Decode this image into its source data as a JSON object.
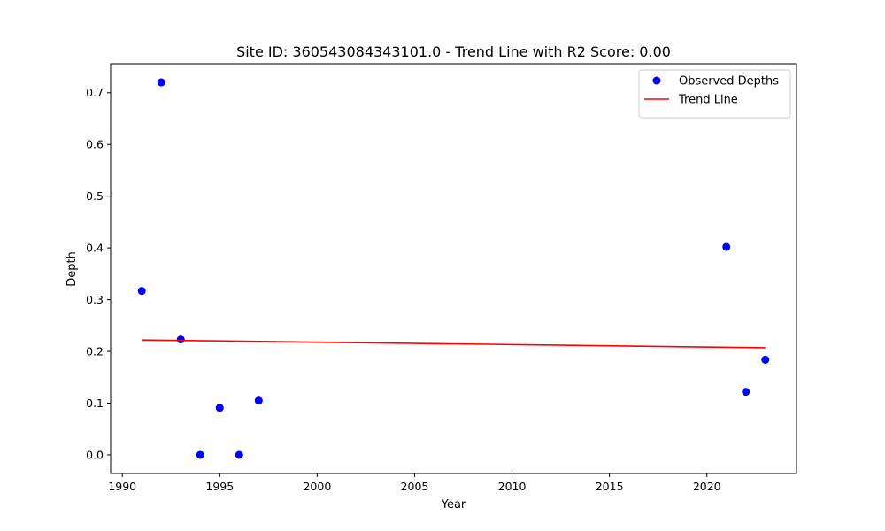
{
  "chart_data": {
    "type": "scatter",
    "title": "Site ID: 360543084343101.0 - Trend Line with R2 Score: 0.00",
    "xlabel": "Year",
    "ylabel": "Depth",
    "xlim": [
      1989.4,
      2024.6
    ],
    "ylim": [
      -0.036,
      0.756
    ],
    "xticks": [
      1990,
      1995,
      2000,
      2005,
      2010,
      2015,
      2020
    ],
    "xtick_labels": [
      "1990",
      "1995",
      "2000",
      "2005",
      "2010",
      "2015",
      "2020"
    ],
    "yticks": [
      0.0,
      0.1,
      0.2,
      0.3,
      0.4,
      0.5,
      0.6,
      0.7
    ],
    "ytick_labels": [
      "0.0",
      "0.1",
      "0.2",
      "0.3",
      "0.4",
      "0.5",
      "0.6",
      "0.7"
    ],
    "grid": false,
    "legend_position": "top-right",
    "series": [
      {
        "name": "Observed Depths",
        "kind": "scatter",
        "color": "#0000ff",
        "points": [
          {
            "x": 1991,
            "y": 0.317
          },
          {
            "x": 1992,
            "y": 0.72
          },
          {
            "x": 1993,
            "y": 0.223
          },
          {
            "x": 1994,
            "y": 0.0
          },
          {
            "x": 1995,
            "y": 0.091
          },
          {
            "x": 1996,
            "y": 0.0
          },
          {
            "x": 1997,
            "y": 0.105
          },
          {
            "x": 2021,
            "y": 0.402
          },
          {
            "x": 2022,
            "y": 0.122
          },
          {
            "x": 2023,
            "y": 0.184
          }
        ]
      },
      {
        "name": "Trend Line",
        "kind": "line",
        "color": "#ff0000",
        "points": [
          {
            "x": 1991,
            "y": 0.222
          },
          {
            "x": 2023,
            "y": 0.207
          }
        ]
      }
    ]
  }
}
